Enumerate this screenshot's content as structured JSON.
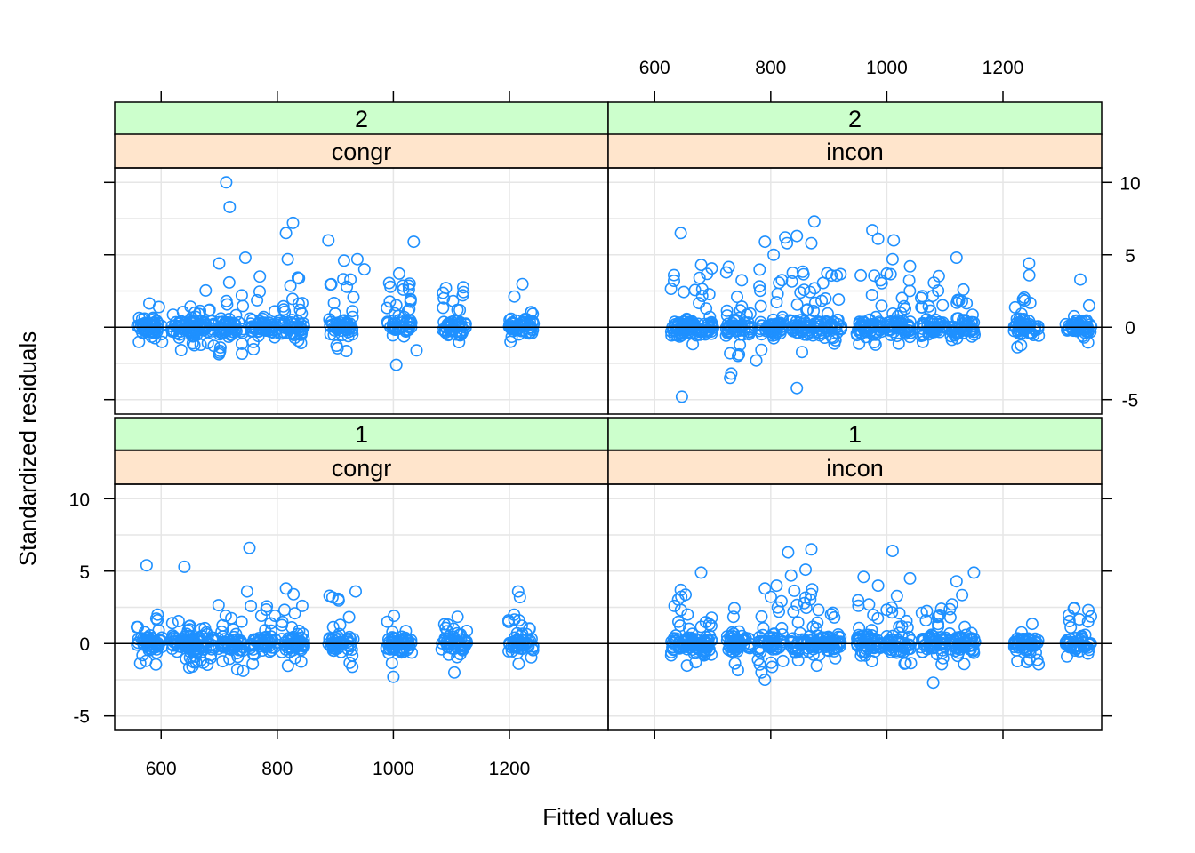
{
  "chart_data": {
    "type": "scatter",
    "xlabel": "Fitted values",
    "ylabel": "Standardized residuals",
    "xlim": [
      520,
      1370
    ],
    "ylim": [
      -6,
      11
    ],
    "x_ticks": [
      "600",
      "800",
      "1000",
      "1200"
    ],
    "y_ticks": [
      "-5",
      "0",
      "5",
      "10"
    ],
    "reference_line_y": 0,
    "grid": true,
    "colors": {
      "points": "#1E90FF",
      "strip_outer": "#CCFFCC",
      "strip_inner": "#FFE5CC",
      "grid": "#E6E6E6"
    },
    "panels": [
      {
        "row": "top",
        "col": "left",
        "strip_outer": "2",
        "strip_inner": "congr",
        "groups": [
          [
            580,
            -1.6,
            2.2
          ],
          [
            640,
            -1.6,
            1.8
          ],
          [
            670,
            -1.4,
            3.0
          ],
          [
            720,
            -2.0,
            3.5
          ],
          [
            775,
            -1.8,
            3.0
          ],
          [
            825,
            -1.5,
            3.5
          ],
          [
            910,
            -1.7,
            3.5
          ],
          [
            1010,
            -1.2,
            3.2
          ],
          [
            1105,
            -1.6,
            2.8
          ],
          [
            1220,
            -1.2,
            3.2
          ]
        ],
        "outliers": [
          [
            712,
            10.0
          ],
          [
            718,
            8.3
          ],
          [
            745,
            4.8
          ],
          [
            700,
            4.4
          ],
          [
            815,
            6.5
          ],
          [
            827,
            7.2
          ],
          [
            818,
            4.7
          ],
          [
            888,
            6.0
          ],
          [
            915,
            4.6
          ],
          [
            938,
            4.7
          ],
          [
            950,
            4.0
          ],
          [
            1035,
            5.9
          ],
          [
            1010,
            3.7
          ],
          [
            1005,
            -2.6
          ],
          [
            1040,
            -1.6
          ],
          [
            770,
            3.5
          ]
        ]
      },
      {
        "row": "top",
        "col": "right",
        "strip_outer": "2",
        "strip_inner": "incon",
        "groups": [
          [
            650,
            -1.6,
            4.2
          ],
          [
            680,
            -1.0,
            4.5
          ],
          [
            745,
            -2.0,
            4.5
          ],
          [
            800,
            -2.0,
            4.0
          ],
          [
            855,
            -2.0,
            4.0
          ],
          [
            900,
            -1.6,
            4.0
          ],
          [
            970,
            -1.6,
            4.0
          ],
          [
            1020,
            -1.5,
            4.0
          ],
          [
            1080,
            -1.3,
            3.6
          ],
          [
            1130,
            -1.2,
            3.0
          ],
          [
            1240,
            -1.6,
            4.0
          ],
          [
            1330,
            -1.3,
            3.5
          ]
        ],
        "outliers": [
          [
            645,
            6.5
          ],
          [
            647,
            -4.8
          ],
          [
            730,
            -3.5
          ],
          [
            732,
            -3.2
          ],
          [
            790,
            5.9
          ],
          [
            805,
            5.0
          ],
          [
            825,
            6.2
          ],
          [
            828,
            5.8
          ],
          [
            845,
            6.3
          ],
          [
            845,
            -4.2
          ],
          [
            875,
            7.3
          ],
          [
            870,
            5.8
          ],
          [
            975,
            6.7
          ],
          [
            985,
            6.1
          ],
          [
            1012,
            6.0
          ],
          [
            1010,
            4.7
          ],
          [
            1040,
            4.2
          ],
          [
            1120,
            4.8
          ],
          [
            1245,
            4.4
          ],
          [
            775,
            -2.3
          ],
          [
            730,
            -1.8
          ]
        ]
      },
      {
        "row": "bottom",
        "col": "left",
        "strip_outer": "1",
        "strip_inner": "congr",
        "groups": [
          [
            580,
            -1.6,
            2.0
          ],
          [
            640,
            -1.4,
            1.6
          ],
          [
            670,
            -1.7,
            1.6
          ],
          [
            720,
            -1.9,
            3.0
          ],
          [
            775,
            -1.8,
            2.8
          ],
          [
            825,
            -1.7,
            3.0
          ],
          [
            910,
            -1.7,
            3.2
          ],
          [
            1010,
            -1.5,
            2.0
          ],
          [
            1105,
            -1.6,
            2.0
          ],
          [
            1220,
            -1.4,
            2.2
          ]
        ],
        "outliers": [
          [
            575,
            5.4
          ],
          [
            640,
            5.3
          ],
          [
            752,
            6.6
          ],
          [
            748,
            3.6
          ],
          [
            815,
            3.8
          ],
          [
            828,
            3.4
          ],
          [
            935,
            3.6
          ],
          [
            890,
            3.3
          ],
          [
            1000,
            -2.3
          ],
          [
            1105,
            -2.0
          ],
          [
            1215,
            3.6
          ],
          [
            1218,
            3.2
          ]
        ]
      },
      {
        "row": "bottom",
        "col": "right",
        "strip_outer": "1",
        "strip_inner": "incon",
        "groups": [
          [
            650,
            -1.6,
            3.5
          ],
          [
            680,
            -1.4,
            2.0
          ],
          [
            745,
            -2.0,
            2.5
          ],
          [
            800,
            -2.0,
            3.5
          ],
          [
            855,
            -2.1,
            3.8
          ],
          [
            900,
            -1.8,
            3.0
          ],
          [
            970,
            -1.8,
            3.0
          ],
          [
            1020,
            -1.8,
            3.5
          ],
          [
            1080,
            -2.0,
            2.5
          ],
          [
            1130,
            -1.5,
            3.5
          ],
          [
            1240,
            -1.5,
            2.0
          ],
          [
            1330,
            -1.2,
            2.8
          ]
        ],
        "outliers": [
          [
            680,
            4.9
          ],
          [
            645,
            3.7
          ],
          [
            790,
            3.8
          ],
          [
            810,
            4.0
          ],
          [
            830,
            6.3
          ],
          [
            870,
            6.5
          ],
          [
            860,
            5.1
          ],
          [
            835,
            4.7
          ],
          [
            1010,
            6.4
          ],
          [
            960,
            4.6
          ],
          [
            985,
            4.0
          ],
          [
            1040,
            4.5
          ],
          [
            1080,
            -2.7
          ],
          [
            1120,
            4.3
          ],
          [
            1150,
            4.9
          ],
          [
            790,
            -2.5
          ]
        ]
      }
    ]
  }
}
